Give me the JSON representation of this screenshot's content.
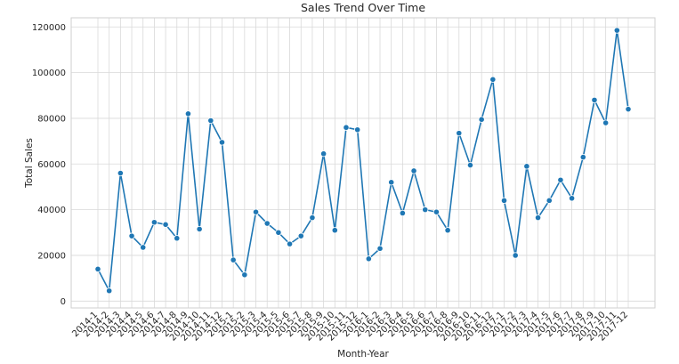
{
  "chart_data": {
    "type": "line",
    "title": "Sales Trend Over Time",
    "xlabel": "Month-Year",
    "ylabel": "Total Sales",
    "categories": [
      "2014-1",
      "2014-2",
      "2014-3",
      "2014-4",
      "2014-5",
      "2014-6",
      "2014-7",
      "2014-8",
      "2014-9",
      "2014-10",
      "2014-11",
      "2014-12",
      "2015-1",
      "2015-2",
      "2015-3",
      "2015-4",
      "2015-5",
      "2015-6",
      "2015-7",
      "2015-8",
      "2015-9",
      "2015-10",
      "2015-11",
      "2015-12",
      "2016-1",
      "2016-2",
      "2016-3",
      "2016-4",
      "2016-5",
      "2016-6",
      "2016-7",
      "2016-8",
      "2016-9",
      "2016-10",
      "2016-11",
      "2016-12",
      "2017-1",
      "2017-2",
      "2017-3",
      "2017-4",
      "2017-5",
      "2017-6",
      "2017-7",
      "2017-8",
      "2017-9",
      "2017-10",
      "2017-11",
      "2017-12"
    ],
    "series": [
      {
        "values": [
          14000,
          4500,
          56000,
          28500,
          23500,
          34500,
          33500,
          27500,
          82000,
          31500,
          79000,
          69500,
          18000,
          11500,
          39000,
          34000,
          30000,
          25000,
          28500,
          36500,
          64500,
          31000,
          76000,
          75000,
          18500,
          23000,
          52000,
          38500,
          57000,
          40000,
          39000,
          31000,
          73500,
          59500,
          79500,
          97000,
          44000,
          20000,
          59000,
          36500,
          44000,
          53000,
          45000,
          63000,
          88000,
          78000,
          118500,
          84000
        ]
      }
    ],
    "yticks": [
      0,
      20000,
      40000,
      60000,
      80000,
      100000,
      120000
    ],
    "ylim": [
      -3000,
      124000
    ],
    "grid": true,
    "line_color": "#1f77b4",
    "grid_color": "#d9d9d9",
    "legend": "none"
  }
}
